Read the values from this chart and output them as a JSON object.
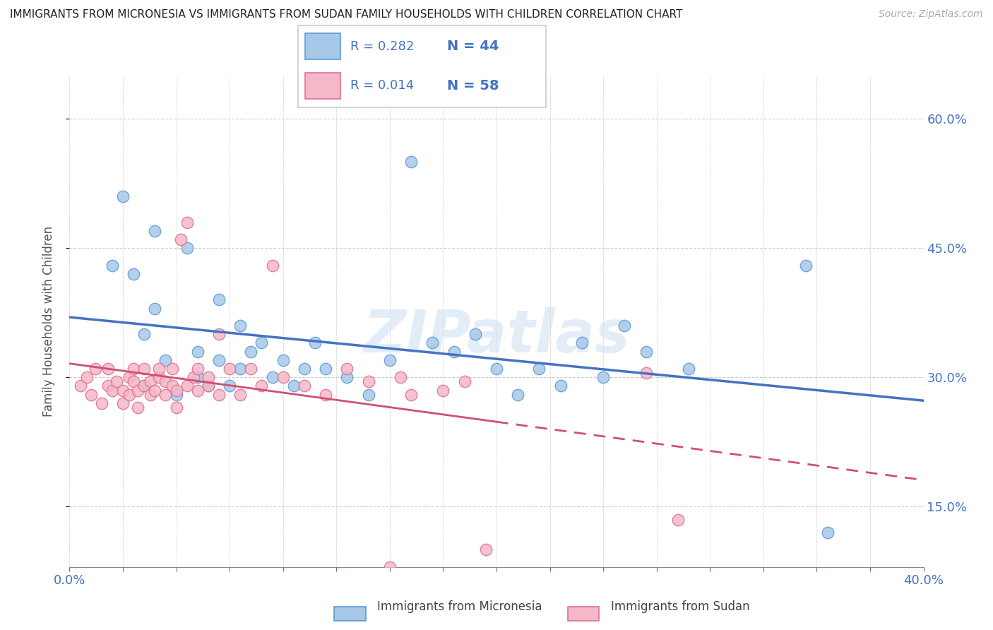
{
  "title": "IMMIGRANTS FROM MICRONESIA VS IMMIGRANTS FROM SUDAN FAMILY HOUSEHOLDS WITH CHILDREN CORRELATION CHART",
  "source": "Source: ZipAtlas.com",
  "ylabel": "Family Households with Children",
  "legend_label_blue": "Immigrants from Micronesia",
  "legend_label_pink": "Immigrants from Sudan",
  "R_blue": 0.282,
  "N_blue": 44,
  "R_pink": 0.014,
  "N_pink": 58,
  "xlim": [
    0.0,
    0.4
  ],
  "ylim": [
    0.08,
    0.65
  ],
  "yticks": [
    0.15,
    0.3,
    0.45,
    0.6
  ],
  "ytick_labels": [
    "15.0%",
    "30.0%",
    "45.0%",
    "60.0%"
  ],
  "xtick_labels_left": "0.0%",
  "xtick_labels_right": "40.0%",
  "color_blue": "#a8c8e8",
  "color_blue_edge": "#5b9bd5",
  "color_blue_line": "#4472c4",
  "color_pink": "#f4b8c8",
  "color_pink_edge": "#e07090",
  "color_pink_line": "#d05070",
  "color_axis_label": "#4472c4",
  "watermark": "ZIPatlas",
  "blue_x": [
    0.02,
    0.025,
    0.03,
    0.035,
    0.035,
    0.04,
    0.04,
    0.045,
    0.05,
    0.055,
    0.06,
    0.06,
    0.065,
    0.07,
    0.07,
    0.075,
    0.08,
    0.08,
    0.085,
    0.09,
    0.095,
    0.1,
    0.105,
    0.11,
    0.115,
    0.12,
    0.13,
    0.14,
    0.15,
    0.16,
    0.17,
    0.18,
    0.19,
    0.2,
    0.21,
    0.22,
    0.23,
    0.24,
    0.25,
    0.26,
    0.27,
    0.29,
    0.345,
    0.355
  ],
  "blue_y": [
    0.43,
    0.51,
    0.42,
    0.35,
    0.29,
    0.47,
    0.38,
    0.32,
    0.28,
    0.45,
    0.3,
    0.33,
    0.29,
    0.39,
    0.32,
    0.29,
    0.36,
    0.31,
    0.33,
    0.34,
    0.3,
    0.32,
    0.29,
    0.31,
    0.34,
    0.31,
    0.3,
    0.28,
    0.32,
    0.55,
    0.34,
    0.33,
    0.35,
    0.31,
    0.28,
    0.31,
    0.29,
    0.34,
    0.3,
    0.36,
    0.33,
    0.31,
    0.43,
    0.12
  ],
  "pink_x": [
    0.005,
    0.008,
    0.01,
    0.012,
    0.015,
    0.018,
    0.018,
    0.02,
    0.022,
    0.025,
    0.025,
    0.028,
    0.028,
    0.03,
    0.03,
    0.032,
    0.032,
    0.035,
    0.035,
    0.038,
    0.038,
    0.04,
    0.042,
    0.042,
    0.045,
    0.045,
    0.048,
    0.048,
    0.05,
    0.05,
    0.052,
    0.055,
    0.055,
    0.058,
    0.06,
    0.06,
    0.065,
    0.065,
    0.07,
    0.07,
    0.075,
    0.08,
    0.085,
    0.09,
    0.095,
    0.1,
    0.11,
    0.12,
    0.13,
    0.14,
    0.15,
    0.155,
    0.16,
    0.175,
    0.185,
    0.195,
    0.27,
    0.285
  ],
  "pink_y": [
    0.29,
    0.3,
    0.28,
    0.31,
    0.27,
    0.29,
    0.31,
    0.285,
    0.295,
    0.27,
    0.285,
    0.3,
    0.28,
    0.295,
    0.31,
    0.285,
    0.265,
    0.29,
    0.31,
    0.28,
    0.295,
    0.285,
    0.3,
    0.31,
    0.28,
    0.295,
    0.29,
    0.31,
    0.285,
    0.265,
    0.46,
    0.29,
    0.48,
    0.3,
    0.285,
    0.31,
    0.29,
    0.3,
    0.28,
    0.35,
    0.31,
    0.28,
    0.31,
    0.29,
    0.43,
    0.3,
    0.29,
    0.28,
    0.31,
    0.295,
    0.08,
    0.3,
    0.28,
    0.285,
    0.295,
    0.1,
    0.305,
    0.135
  ]
}
